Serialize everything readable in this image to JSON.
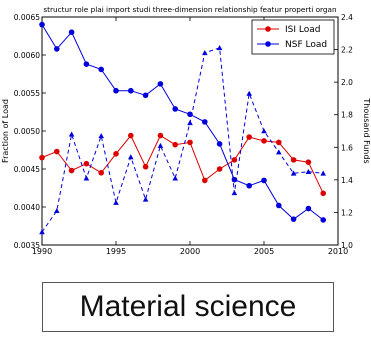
{
  "chart_data": {
    "type": "line",
    "title": "structur role plai import studi three-dimension relationship featur properti organ",
    "xlabel": "",
    "ylabel": "Fraction of Load",
    "y2label": "Thousand Funds",
    "xlim": [
      1990,
      2010
    ],
    "ylim": [
      0.0035,
      0.0065
    ],
    "y2lim": [
      1.0,
      2.4
    ],
    "x_ticks": [
      "1990",
      "1995",
      "2000",
      "2005",
      "2010"
    ],
    "y_ticks": [
      "0.0035",
      "0.0040",
      "0.0045",
      "0.0050",
      "0.0055",
      "0.0060",
      "0.0065"
    ],
    "y2_ticks": [
      "1.0",
      "1.2",
      "1.4",
      "1.6",
      "1.8",
      "2.0",
      "2.2",
      "2.4"
    ],
    "grid": false,
    "legend_position": "top-right",
    "series": [
      {
        "name": "ISI Load",
        "axis": "left",
        "color": "#dd0000",
        "marker": "circle",
        "style": "solid",
        "x": [
          1990,
          1991,
          1992,
          1993,
          1994,
          1995,
          1996,
          1997,
          1998,
          1999,
          2000,
          2001,
          2002,
          2003,
          2004,
          2005,
          2006,
          2007,
          2008,
          2009
        ],
        "y": [
          0.00465,
          0.00473,
          0.00448,
          0.00457,
          0.00445,
          0.0047,
          0.00494,
          0.00453,
          0.00494,
          0.00482,
          0.00485,
          0.00435,
          0.0045,
          0.00462,
          0.00492,
          0.00487,
          0.00485,
          0.00462,
          0.00459,
          0.00418
        ]
      },
      {
        "name": "NSF Load",
        "axis": "left",
        "color": "#0000dd",
        "marker": "circle",
        "style": "solid",
        "x": [
          1990,
          1991,
          1992,
          1993,
          1994,
          1995,
          1996,
          1997,
          1998,
          1999,
          2000,
          2001,
          2002,
          2003,
          2004,
          2005,
          2006,
          2007,
          2008,
          2009
        ],
        "y": [
          0.0064,
          0.00608,
          0.0063,
          0.00588,
          0.00581,
          0.00553,
          0.00553,
          0.00547,
          0.00562,
          0.00529,
          0.00522,
          0.00512,
          0.00483,
          0.00436,
          0.00428,
          0.00435,
          0.00402,
          0.00384,
          0.00398,
          0.00383
        ]
      },
      {
        "name": "",
        "axis": "right",
        "color": "#0000dd",
        "marker": "triangle",
        "style": "dashed",
        "x": [
          1990,
          1991,
          1992,
          1993,
          1994,
          1995,
          1996,
          1997,
          1998,
          1999,
          2000,
          2001,
          2002,
          2003,
          2004,
          2005,
          2006,
          2007,
          2008,
          2009
        ],
        "y": [
          1.08,
          1.21,
          1.68,
          1.41,
          1.67,
          1.26,
          1.54,
          1.28,
          1.61,
          1.41,
          1.75,
          2.18,
          2.21,
          1.32,
          1.93,
          1.7,
          1.57,
          1.44,
          1.45,
          1.44
        ]
      }
    ]
  },
  "caption": "Material science"
}
